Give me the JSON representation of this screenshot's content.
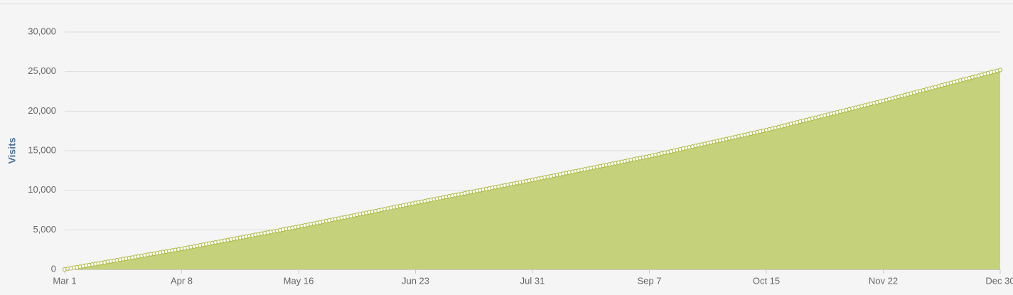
{
  "chart_data": {
    "type": "area",
    "y_label": "Visits",
    "color": "#c6d17b",
    "line_color": "#a9b737",
    "marker_color": "#ffffff",
    "grid": true,
    "xlim": [
      0,
      304
    ],
    "ylim": [
      0,
      30000
    ],
    "yticks": [
      0,
      {
        "value": 5000,
        "label": "5,000"
      },
      {
        "value": 10000,
        "label": "10,000"
      },
      {
        "value": 15000,
        "label": "15,000"
      },
      {
        "value": 20000,
        "label": "20,000"
      },
      {
        "value": 25000,
        "label": "25,000"
      },
      {
        "value": 30000,
        "label": "30,000"
      }
    ],
    "xticks": [
      {
        "value": 0,
        "label": "Mar 1"
      },
      {
        "value": 38,
        "label": "Apr 8"
      },
      {
        "value": 76,
        "label": "May 16"
      },
      {
        "value": 114,
        "label": "Jun 23"
      },
      {
        "value": 152,
        "label": "Jul 31"
      },
      {
        "value": 190,
        "label": "Sep 7"
      },
      {
        "value": 228,
        "label": "Oct 15"
      },
      {
        "value": 266,
        "label": "Nov 22"
      },
      {
        "value": 304,
        "label": "Dec 30"
      }
    ],
    "x": [
      0,
      1,
      2,
      3,
      4,
      5,
      6,
      7,
      8,
      9,
      10,
      11,
      12,
      13,
      14,
      15,
      16,
      17,
      18,
      19,
      20,
      21,
      22,
      23,
      24,
      25,
      26,
      27,
      28,
      29,
      30,
      31,
      32,
      33,
      34,
      35,
      36,
      37,
      38,
      39,
      40,
      41,
      42,
      43,
      44,
      45,
      46,
      47,
      48,
      49,
      50,
      51,
      52,
      53,
      54,
      55,
      56,
      57,
      58,
      59,
      60,
      61,
      62,
      63,
      64,
      65,
      66,
      67,
      68,
      69,
      70,
      71,
      72,
      73,
      74,
      75,
      76,
      77,
      78,
      79,
      80,
      81,
      82,
      83,
      84,
      85,
      86,
      87,
      88,
      89,
      90,
      91,
      92,
      93,
      94,
      95,
      96,
      97,
      98,
      99,
      100,
      101,
      102,
      103,
      104,
      105,
      106,
      107,
      108,
      109,
      110,
      111,
      112,
      113,
      114,
      115,
      116,
      117,
      118,
      119,
      120,
      121,
      122,
      123,
      124,
      125,
      126,
      127,
      128,
      129,
      130,
      131,
      132,
      133,
      134,
      135,
      136,
      137,
      138,
      139,
      140,
      141,
      142,
      143,
      144,
      145,
      146,
      147,
      148,
      149,
      150,
      151,
      152,
      153,
      154,
      155,
      156,
      157,
      158,
      159,
      160,
      161,
      162,
      163,
      164,
      165,
      166,
      167,
      168,
      169,
      170,
      171,
      172,
      173,
      174,
      175,
      176,
      177,
      178,
      179,
      180,
      181,
      182,
      183,
      184,
      185,
      186,
      187,
      188,
      189,
      190,
      191,
      192,
      193,
      194,
      195,
      196,
      197,
      198,
      199,
      200,
      201,
      202,
      203,
      204,
      205,
      206,
      207,
      208,
      209,
      210,
      211,
      212,
      213,
      214,
      215,
      216,
      217,
      218,
      219,
      220,
      221,
      222,
      223,
      224,
      225,
      226,
      227,
      228,
      229,
      230,
      231,
      232,
      233,
      234,
      235,
      236,
      237,
      238,
      239,
      240,
      241,
      242,
      243,
      244,
      245,
      246,
      247,
      248,
      249,
      250,
      251,
      252,
      253,
      254,
      255,
      256,
      257,
      258,
      259,
      260,
      261,
      262,
      263,
      264,
      265,
      266,
      267,
      268,
      269,
      270,
      271,
      272,
      273,
      274,
      275,
      276,
      277,
      278,
      279,
      280,
      281,
      282,
      283,
      284,
      285,
      286,
      287,
      288,
      289,
      290,
      291,
      292,
      293,
      294,
      295,
      296,
      297,
      298,
      299,
      300,
      301,
      302,
      303,
      304
    ],
    "values": [
      0,
      70,
      140,
      210,
      270,
      340,
      410,
      480,
      550,
      620,
      680,
      750,
      820,
      890,
      960,
      1030,
      1090,
      1160,
      1230,
      1300,
      1370,
      1440,
      1500,
      1570,
      1640,
      1710,
      1780,
      1850,
      1920,
      1980,
      2050,
      2120,
      2190,
      2260,
      2330,
      2390,
      2460,
      2530,
      2600,
      2670,
      2750,
      2820,
      2890,
      2970,
      3040,
      3120,
      3190,
      3260,
      3340,
      3410,
      3480,
      3560,
      3630,
      3710,
      3780,
      3850,
      3930,
      4000,
      4070,
      4150,
      4220,
      4290,
      4370,
      4440,
      4520,
      4590,
      4660,
      4740,
      4810,
      4880,
      4960,
      5030,
      5110,
      5180,
      5250,
      5330,
      5400,
      5480,
      5560,
      5640,
      5720,
      5790,
      5870,
      5950,
      6030,
      6110,
      6190,
      6270,
      6350,
      6430,
      6510,
      6580,
      6660,
      6740,
      6820,
      6900,
      6980,
      7060,
      7140,
      7220,
      7290,
      7370,
      7450,
      7530,
      7610,
      7690,
      7770,
      7850,
      7930,
      8010,
      8080,
      8160,
      8240,
      8320,
      8400,
      8480,
      8550,
      8630,
      8710,
      8780,
      8860,
      8930,
      9010,
      9090,
      9160,
      9240,
      9320,
      9390,
      9470,
      9540,
      9620,
      9700,
      9770,
      9850,
      9930,
      10000,
      10080,
      10160,
      10230,
      10310,
      10380,
      10460,
      10540,
      10610,
      10690,
      10770,
      10840,
      10920,
      10990,
      11070,
      11150,
      11220,
      11300,
      11380,
      11460,
      11540,
      11620,
      11690,
      11770,
      11850,
      11930,
      12010,
      12090,
      12170,
      12250,
      12330,
      12410,
      12480,
      12560,
      12640,
      12720,
      12800,
      12880,
      12960,
      13040,
      13120,
      13190,
      13270,
      13350,
      13430,
      13510,
      13590,
      13670,
      13750,
      13830,
      13910,
      13980,
      14060,
      14140,
      14220,
      14300,
      14390,
      14470,
      14560,
      14650,
      14730,
      14820,
      14910,
      14990,
      15080,
      15170,
      15260,
      15340,
      15430,
      15520,
      15600,
      15690,
      15780,
      15860,
      15950,
      16040,
      16120,
      16210,
      16300,
      16380,
      16470,
      16560,
      16640,
      16730,
      16820,
      16910,
      16990,
      17080,
      17170,
      17250,
      17340,
      17430,
      17510,
      17600,
      17700,
      17790,
      17890,
      17990,
      18090,
      18180,
      18280,
      18380,
      18480,
      18570,
      18670,
      18770,
      18870,
      18960,
      19060,
      19160,
      19260,
      19350,
      19450,
      19550,
      19640,
      19740,
      19840,
      19940,
      20030,
      20130,
      20230,
      20330,
      20420,
      20520,
      20620,
      20720,
      20810,
      20910,
      21010,
      21110,
      21200,
      21300,
      21400,
      21510,
      21610,
      21710,
      21810,
      21920,
      22020,
      22120,
      22220,
      22330,
      22430,
      22530,
      22630,
      22740,
      22840,
      22940,
      23040,
      23150,
      23250,
      23350,
      23460,
      23560,
      23660,
      23760,
      23870,
      23970,
      24070,
      24170,
      24280,
      24380,
      24480,
      24580,
      24690,
      24790,
      24890,
      24990,
      25100,
      25200
    ]
  }
}
